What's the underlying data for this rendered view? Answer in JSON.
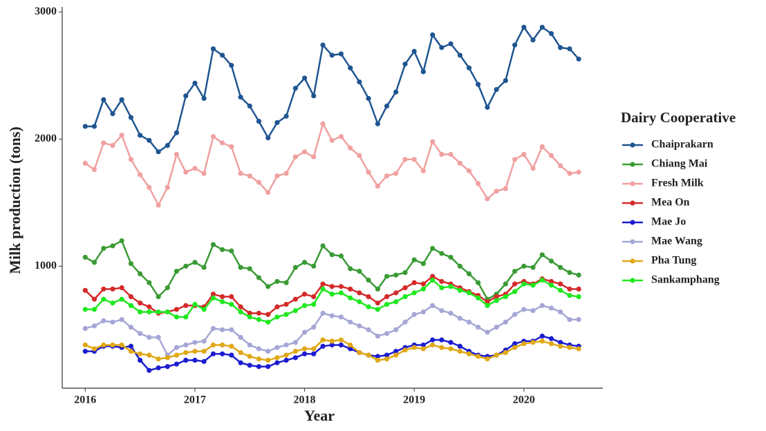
{
  "chart_data": {
    "type": "line",
    "x_label": "Year",
    "y_label": "Milk production (tons)",
    "legend_title": "Dairy Cooperative",
    "x": [
      2016,
      2016.083,
      2016.167,
      2016.25,
      2016.333,
      2016.417,
      2016.5,
      2016.583,
      2016.667,
      2016.75,
      2016.833,
      2016.917,
      2017,
      2017.083,
      2017.167,
      2017.25,
      2017.333,
      2017.417,
      2017.5,
      2017.583,
      2017.667,
      2017.75,
      2017.833,
      2017.917,
      2018,
      2018.083,
      2018.167,
      2018.25,
      2018.333,
      2018.417,
      2018.5,
      2018.583,
      2018.667,
      2018.75,
      2018.833,
      2018.917,
      2019,
      2019.083,
      2019.167,
      2019.25,
      2019.333,
      2019.417,
      2019.5,
      2019.583,
      2019.667,
      2019.75,
      2019.833,
      2019.917,
      2020,
      2020.083,
      2020.167,
      2020.25,
      2020.333,
      2020.417,
      2020.5
    ],
    "xlim": [
      2015.79,
      2020.72
    ],
    "xticks": [
      2016,
      2017,
      2018,
      2019,
      2020
    ],
    "ylim": [
      40,
      3040
    ],
    "yticks": [
      1000,
      2000,
      3000
    ],
    "legend": "right",
    "series": [
      {
        "name": "Chaiprakarn",
        "color": "#1f5591",
        "values": [
          2100,
          2100,
          2310,
          2200,
          2310,
          2170,
          2030,
          1990,
          1900,
          1950,
          2050,
          2340,
          2440,
          2320,
          2710,
          2660,
          2580,
          2330,
          2260,
          2140,
          2010,
          2130,
          2180,
          2400,
          2480,
          2340,
          2740,
          2660,
          2670,
          2560,
          2450,
          2320,
          2120,
          2260,
          2370,
          2590,
          2690,
          2530,
          2820,
          2720,
          2750,
          2660,
          2560,
          2430,
          2250,
          2390,
          2460,
          2740,
          2880,
          2780,
          2880,
          2830,
          2720,
          2710,
          2630
        ]
      },
      {
        "name": "Chiang Mai",
        "color": "#3a9b35",
        "values": [
          1070,
          1030,
          1140,
          1160,
          1200,
          1020,
          940,
          870,
          760,
          830,
          960,
          1000,
          1030,
          990,
          1170,
          1130,
          1120,
          990,
          980,
          910,
          840,
          880,
          870,
          990,
          1030,
          1000,
          1160,
          1090,
          1080,
          980,
          960,
          890,
          820,
          920,
          930,
          950,
          1050,
          1020,
          1140,
          1100,
          1070,
          1000,
          940,
          870,
          740,
          780,
          860,
          960,
          1000,
          990,
          1090,
          1040,
          990,
          950,
          930
        ]
      },
      {
        "name": "Fresh Milk",
        "color": "#f0a0a0",
        "values": [
          1810,
          1760,
          1970,
          1950,
          2030,
          1840,
          1720,
          1620,
          1480,
          1620,
          1880,
          1740,
          1770,
          1730,
          2020,
          1970,
          1940,
          1730,
          1710,
          1660,
          1580,
          1710,
          1730,
          1860,
          1900,
          1860,
          2120,
          1990,
          2020,
          1930,
          1870,
          1740,
          1630,
          1710,
          1730,
          1840,
          1840,
          1750,
          1980,
          1880,
          1880,
          1810,
          1750,
          1650,
          1530,
          1590,
          1610,
          1840,
          1880,
          1770,
          1940,
          1870,
          1790,
          1730,
          1740
        ]
      },
      {
        "name": "Mea On",
        "color": "#d42a2a",
        "values": [
          810,
          740,
          820,
          820,
          830,
          760,
          710,
          680,
          630,
          640,
          660,
          690,
          690,
          680,
          780,
          760,
          760,
          680,
          630,
          630,
          620,
          680,
          700,
          740,
          780,
          760,
          860,
          840,
          840,
          820,
          790,
          760,
          710,
          760,
          790,
          830,
          870,
          860,
          920,
          880,
          860,
          830,
          800,
          770,
          720,
          760,
          780,
          860,
          880,
          860,
          900,
          880,
          860,
          820,
          820
        ]
      },
      {
        "name": "Mae Jo",
        "color": "#1c1cd0",
        "values": [
          330,
          330,
          370,
          370,
          360,
          370,
          260,
          180,
          200,
          210,
          230,
          260,
          260,
          250,
          310,
          310,
          300,
          240,
          220,
          210,
          210,
          240,
          260,
          280,
          310,
          310,
          370,
          380,
          380,
          350,
          320,
          300,
          290,
          300,
          330,
          360,
          380,
          380,
          420,
          420,
          400,
          370,
          330,
          300,
          290,
          300,
          340,
          390,
          410,
          410,
          450,
          430,
          400,
          380,
          370
        ]
      },
      {
        "name": "Mae Wang",
        "color": "#a6a6d6",
        "values": [
          510,
          530,
          570,
          560,
          580,
          520,
          470,
          440,
          440,
          300,
          360,
          380,
          400,
          410,
          510,
          500,
          500,
          440,
          380,
          350,
          330,
          360,
          380,
          400,
          480,
          520,
          630,
          610,
          600,
          560,
          530,
          500,
          450,
          470,
          500,
          560,
          620,
          640,
          690,
          650,
          630,
          590,
          560,
          520,
          480,
          520,
          560,
          620,
          660,
          650,
          690,
          670,
          640,
          580,
          580
        ]
      },
      {
        "name": "Pha Tung",
        "color": "#e0a817",
        "values": [
          380,
          350,
          380,
          380,
          380,
          330,
          310,
          300,
          270,
          280,
          300,
          320,
          330,
          330,
          380,
          380,
          370,
          320,
          290,
          270,
          260,
          280,
          300,
          330,
          350,
          350,
          420,
          410,
          420,
          380,
          320,
          300,
          260,
          270,
          300,
          340,
          360,
          350,
          380,
          360,
          350,
          330,
          310,
          290,
          270,
          300,
          320,
          360,
          390,
          400,
          410,
          390,
          370,
          360,
          350
        ]
      },
      {
        "name": "Sankamphang",
        "color": "#1fe81f",
        "values": [
          660,
          660,
          740,
          710,
          740,
          690,
          640,
          640,
          640,
          640,
          600,
          600,
          700,
          660,
          750,
          720,
          700,
          640,
          600,
          580,
          560,
          600,
          620,
          650,
          690,
          700,
          820,
          780,
          790,
          750,
          720,
          680,
          660,
          700,
          720,
          760,
          790,
          820,
          890,
          830,
          840,
          810,
          790,
          750,
          690,
          730,
          760,
          800,
          860,
          850,
          890,
          850,
          810,
          770,
          760
        ]
      }
    ]
  }
}
